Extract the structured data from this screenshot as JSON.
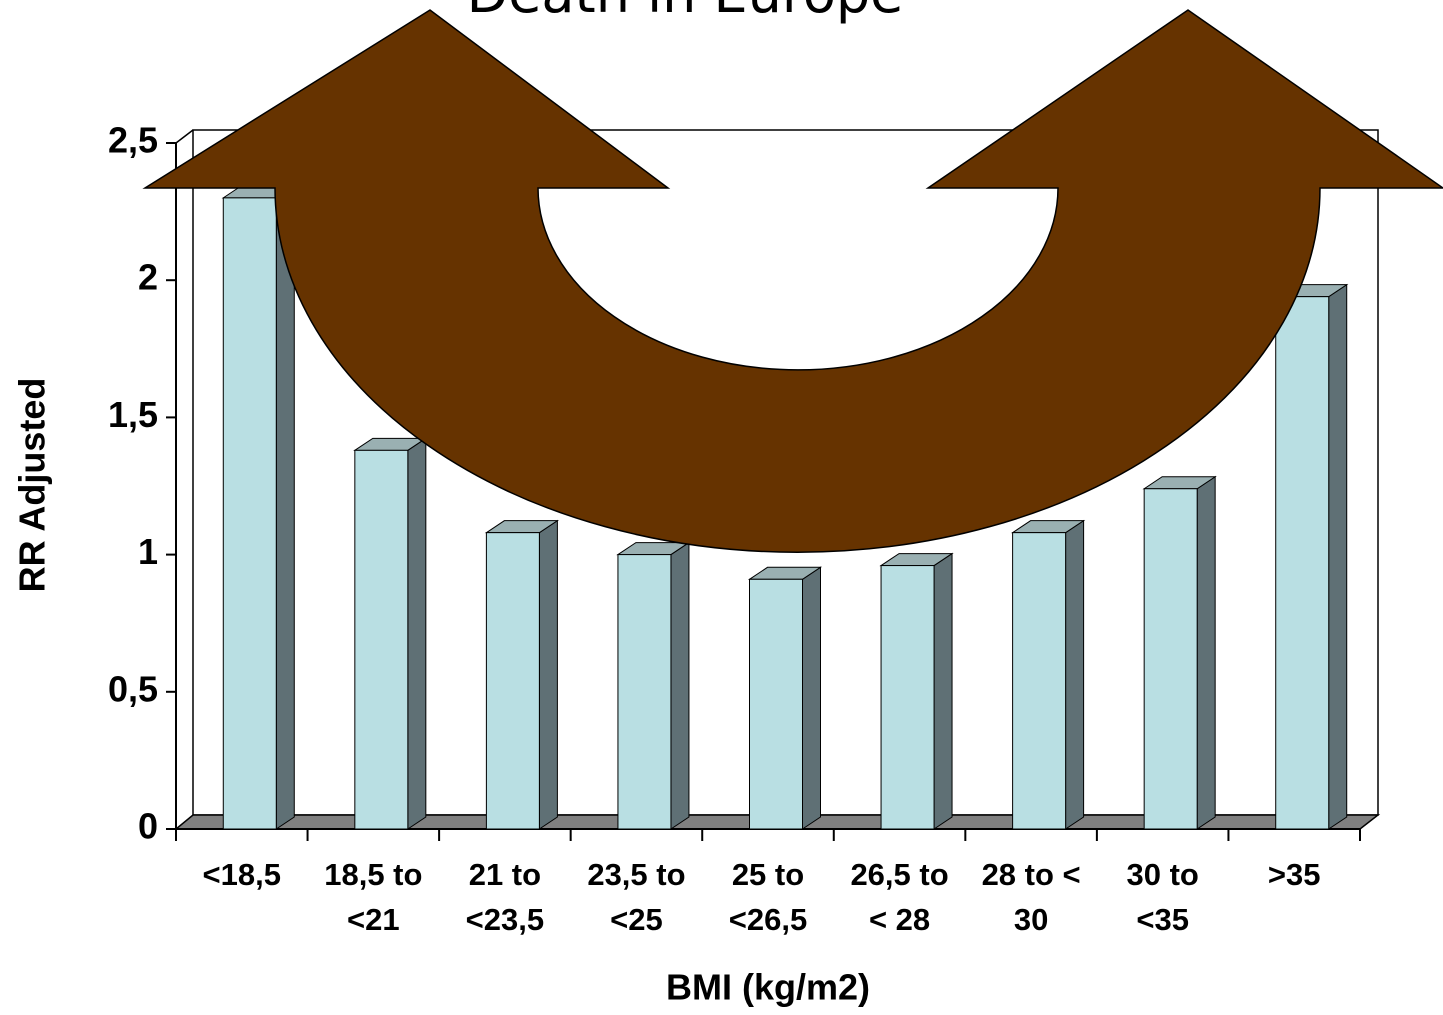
{
  "chart_data": {
    "type": "bar",
    "title": "Death in Europe",
    "x_label": "BMI (kg/m2)",
    "y_label": "RR Adjusted",
    "categories": [
      "<18,5",
      "18,5 to\n<21",
      "21 to\n<23,5",
      "23,5 to\n<25",
      "25 to\n<26,5",
      "26,5 to\n< 28",
      "28 to <\n30",
      "30 to\n<35",
      ">35"
    ],
    "values": [
      2.3,
      1.38,
      1.08,
      1.0,
      0.91,
      0.96,
      1.08,
      1.24,
      1.94
    ],
    "color": "#b9dfe3",
    "ylim": [
      0,
      2.5
    ],
    "yticks": [
      0,
      {
        "value": 0.5,
        "label": "0,5"
      },
      1,
      {
        "value": 1.5,
        "label": "1,5"
      },
      2,
      {
        "value": 2.5,
        "label": "2,5"
      }
    ],
    "grid": false
  }
}
